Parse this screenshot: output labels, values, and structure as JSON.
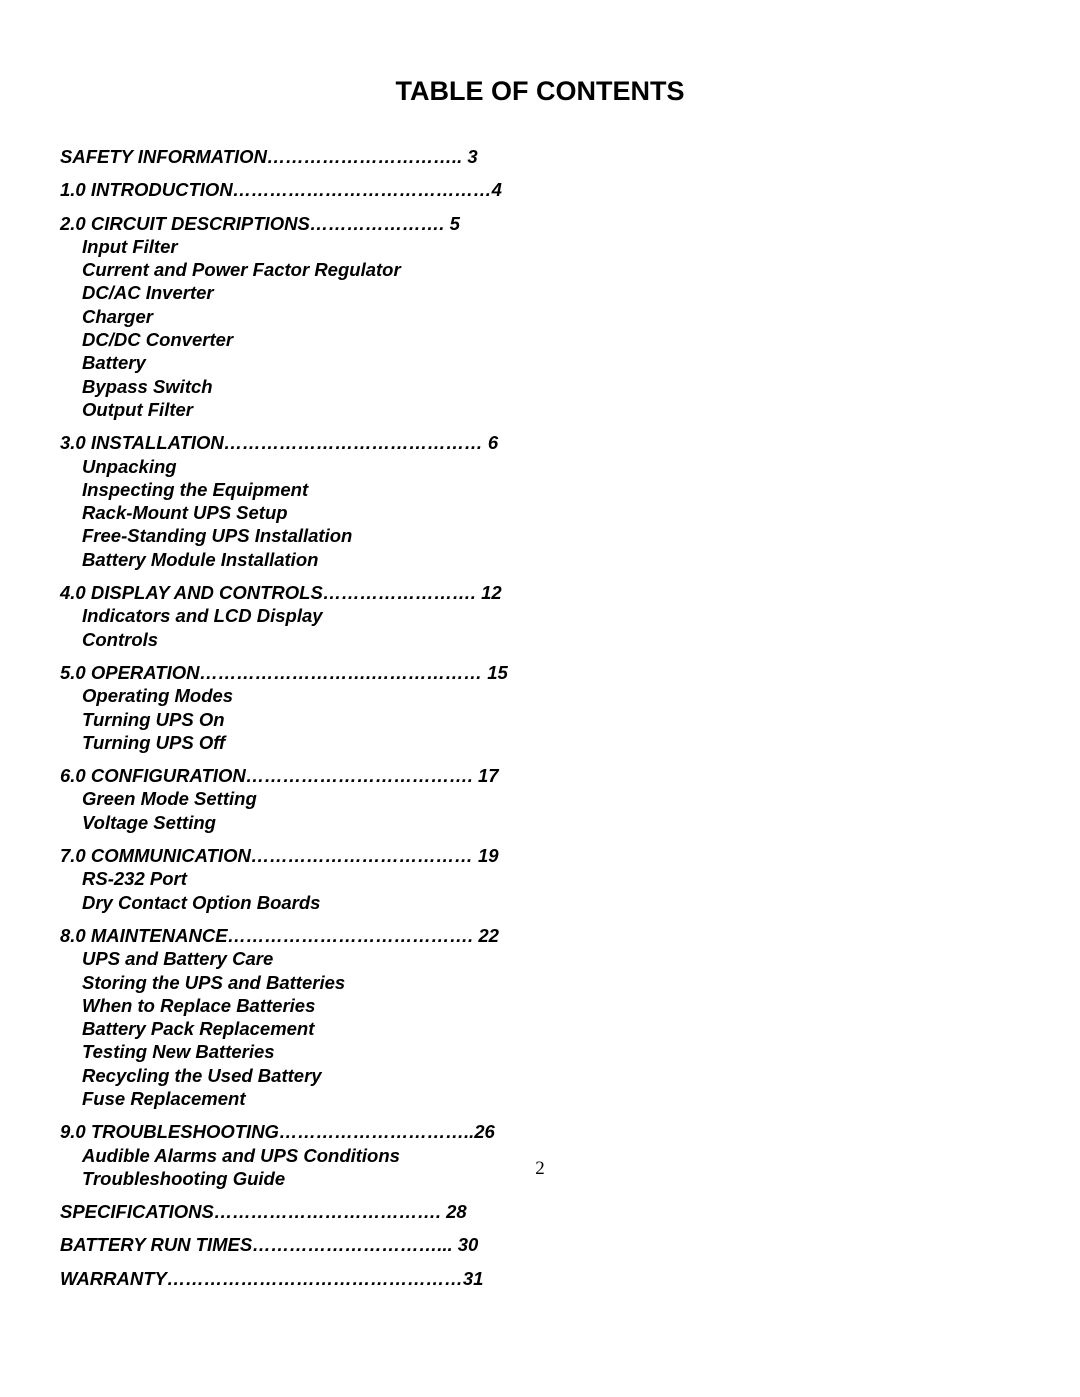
{
  "title": "TABLE OF CONTENTS",
  "page_number": "2",
  "typography": {
    "title_fontsize": 27,
    "body_fontsize": 18.5,
    "font_family": "Arial",
    "font_weight": "bold",
    "font_style": "italic",
    "color": "#000000",
    "background": "#ffffff"
  },
  "sections": [
    {
      "line": "SAFETY INFORMATION………………………….. 3",
      "subs": []
    },
    {
      "line": "1.0 INTRODUCTION……………………………………4",
      "subs": []
    },
    {
      "line": "2.0 CIRCUIT DESCRIPTIONS…………………. 5",
      "subs": [
        "Input Filter",
        "Current and Power Factor Regulator",
        "DC/AC Inverter",
        "Charger",
        "DC/DC Converter",
        "Battery",
        "Bypass Switch",
        "Output Filter"
      ]
    },
    {
      "line": "3.0 INSTALLATION…………………………………… 6",
      "subs": [
        "Unpacking",
        "Inspecting the Equipment",
        "Rack-Mount UPS Setup",
        "Free-Standing UPS Installation",
        "Battery Module Installation"
      ]
    },
    {
      "line": "4.0 DISPLAY AND CONTROLS……………………. 12",
      "subs": [
        "Indicators and LCD Display",
        "Controls"
      ]
    },
    {
      "line": "5.0 OPERATION……………………….……………… 15",
      "subs": [
        "Operating Modes",
        "Turning UPS On",
        "Turning UPS Off"
      ]
    },
    {
      "line": "6.0 CONFIGURATION………………………………. 17",
      "subs": [
        "Green Mode Setting",
        "Voltage Setting"
      ]
    },
    {
      "line": "7.0 COMMUNICATION……………………………… 19",
      "subs": [
        "RS-232 Port",
        "Dry Contact Option Boards"
      ]
    },
    {
      "line": "8.0 MAINTENANCE…………………………………. 22",
      "subs": [
        "UPS and Battery Care",
        "Storing the UPS and Batteries",
        "When to Replace Batteries",
        "Battery Pack Replacement",
        "Testing New Batteries",
        "Recycling the Used Battery",
        "Fuse Replacement"
      ]
    },
    {
      "line": "9.0 TROUBLESHOOTING…………………………..26",
      "subs": [
        "Audible Alarms and UPS Conditions",
        "Troubleshooting Guide"
      ]
    },
    {
      "line": "SPECIFICATIONS………………………………. 28",
      "subs": []
    },
    {
      "line": "BATTERY RUN TIMES…………………………... 30",
      "subs": []
    },
    {
      "line": "WARRANTY…………………………………………31",
      "subs": []
    }
  ]
}
